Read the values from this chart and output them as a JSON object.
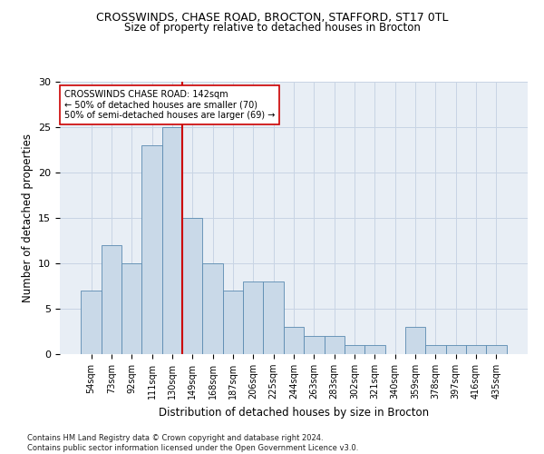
{
  "title_line1": "CROSSWINDS, CHASE ROAD, BROCTON, STAFFORD, ST17 0TL",
  "title_line2": "Size of property relative to detached houses in Brocton",
  "xlabel": "Distribution of detached houses by size in Brocton",
  "ylabel": "Number of detached properties",
  "categories": [
    "54sqm",
    "73sqm",
    "92sqm",
    "111sqm",
    "130sqm",
    "149sqm",
    "168sqm",
    "187sqm",
    "206sqm",
    "225sqm",
    "244sqm",
    "263sqm",
    "283sqm",
    "302sqm",
    "321sqm",
    "340sqm",
    "359sqm",
    "378sqm",
    "397sqm",
    "416sqm",
    "435sqm"
  ],
  "values": [
    7,
    12,
    10,
    23,
    25,
    15,
    10,
    7,
    8,
    8,
    3,
    2,
    2,
    1,
    1,
    0,
    3,
    1,
    1,
    1,
    1
  ],
  "bar_color": "#c9d9e8",
  "bar_edge_color": "#5a8ab0",
  "vline_x": 4.5,
  "vline_color": "#cc0000",
  "annotation_text": "CROSSWINDS CHASE ROAD: 142sqm\n← 50% of detached houses are smaller (70)\n50% of semi-detached houses are larger (69) →",
  "annotation_box_color": "#ffffff",
  "annotation_box_edge": "#cc0000",
  "ylim": [
    0,
    30
  ],
  "yticks": [
    0,
    5,
    10,
    15,
    20,
    25,
    30
  ],
  "footnote": "Contains HM Land Registry data © Crown copyright and database right 2024.\nContains public sector information licensed under the Open Government Licence v3.0.",
  "background_color": "#ffffff",
  "plot_bg_color": "#e8eef5",
  "grid_color": "#c8d4e4",
  "title_fontsize": 9,
  "subtitle_fontsize": 8.5,
  "axis_label_fontsize": 8.5,
  "tick_fontsize": 7,
  "annotation_fontsize": 7,
  "footnote_fontsize": 6
}
